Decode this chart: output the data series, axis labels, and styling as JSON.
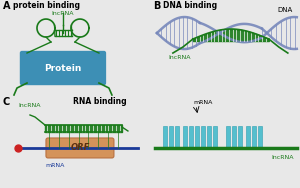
{
  "bg_color": "#e8e8e8",
  "green": "#1a7a1a",
  "green2": "#2d9e2d",
  "blue_dna": "#7788bb",
  "blue_dna2": "#99aacc",
  "protein_teal": "#3d8fb5",
  "protein_teal2": "#5aafd5",
  "orf_orange": "#d4935a",
  "orf_orange2": "#e8a96a",
  "cyan_bar": "#44bbcc",
  "mrna_blue": "#1a3a99",
  "label_A": "A",
  "label_B": "B",
  "label_C": "C",
  "title_A": "protein binding",
  "title_B": "DNA binding",
  "title_C": "RNA binding",
  "lncRNA": "lncRNA",
  "protein": "Protein",
  "DNA": "DNA",
  "mRNA": "mRNA",
  "ORF": "ORF"
}
